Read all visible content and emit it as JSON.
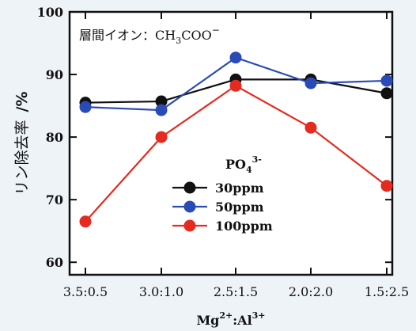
{
  "chart_data": {
    "type": "line",
    "annotation": "層間イオン：CH",
    "annotation_sub": "3",
    "annotation_tail": "COO",
    "annotation_sup": "−",
    "ylabel": "リン除去率",
    "ylabel_unit": "/%",
    "xlabel_parts": {
      "a": "Mg",
      "a_sup": "2+",
      "sep": ":Al",
      "b_sup": "3+"
    },
    "categories": [
      "3.5:0.5",
      "3.0:1.0",
      "2.5:1.5",
      "2.0:2.0",
      "1.5:2.5"
    ],
    "ylim": [
      58,
      100
    ],
    "yticks": [
      60,
      70,
      80,
      90,
      100
    ],
    "legend_title": "PO",
    "legend_title_sub": "4",
    "legend_title_sup": "3-",
    "series": [
      {
        "name": "30ppm",
        "color": "#111111",
        "values": [
          85.5,
          85.7,
          89.2,
          89.2,
          87.0
        ]
      },
      {
        "name": "50ppm",
        "color": "#2a4bb5",
        "values": [
          84.8,
          84.3,
          92.7,
          88.6,
          89.0
        ]
      },
      {
        "name": "100ppm",
        "color": "#e52b1f",
        "values": [
          66.5,
          80.0,
          88.2,
          81.5,
          72.2
        ]
      }
    ]
  }
}
